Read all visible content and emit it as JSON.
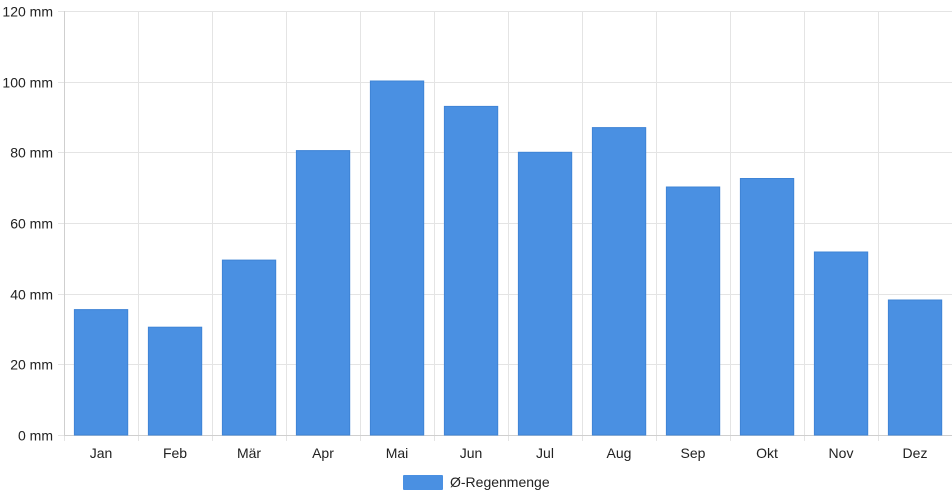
{
  "chart_data": {
    "type": "bar",
    "categories": [
      "Jan",
      "Feb",
      "Mär",
      "Apr",
      "Mai",
      "Jun",
      "Jul",
      "Aug",
      "Sep",
      "Okt",
      "Nov",
      "Dez"
    ],
    "series": [
      {
        "name": "Ø-Regenmenge",
        "values": [
          35.5,
          30.5,
          49.5,
          80.5,
          100.2,
          93.0,
          80.0,
          87.0,
          70.2,
          72.6,
          51.8,
          38.2
        ],
        "color": "#4a90e2"
      }
    ],
    "y_unit": "mm",
    "y_ticks": [
      "0 mm",
      "20 mm",
      "40 mm",
      "60 mm",
      "80 mm",
      "100 mm",
      "120 mm"
    ],
    "ylim": [
      0,
      120
    ],
    "grid": true,
    "legend_position": "bottom-center"
  }
}
